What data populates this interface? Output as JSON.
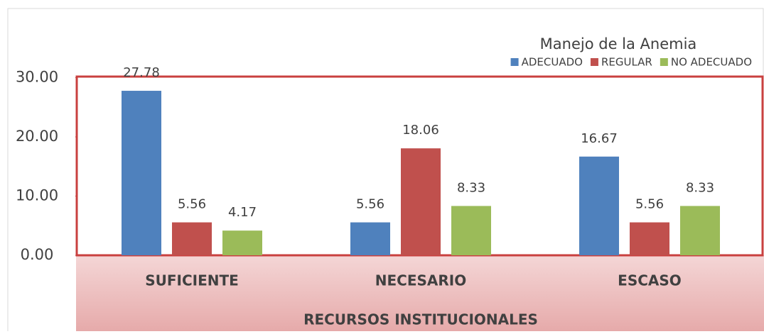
{
  "chart_data": {
    "type": "bar",
    "legend_title": "Manejo de la Anemia",
    "x_label": "RECURSOS INSTITUCIONALES",
    "categories": [
      "SUFICIENTE",
      "NECESARIO",
      "ESCASO"
    ],
    "series": [
      {
        "name": "ADECUADO",
        "color": "#4f81bd",
        "values": [
          27.78,
          5.56,
          16.67
        ]
      },
      {
        "name": "REGULAR",
        "color": "#c0504d",
        "values": [
          5.56,
          18.06,
          5.56
        ]
      },
      {
        "name": "NO ADECUADO",
        "color": "#9bbb59",
        "values": [
          4.17,
          8.33,
          8.33
        ]
      }
    ],
    "ylim": [
      0,
      30
    ],
    "yticks": [
      {
        "value": 0,
        "label": "0.00"
      },
      {
        "value": 10,
        "label": "10.00"
      },
      {
        "value": 20,
        "label": "20.00"
      },
      {
        "value": 30,
        "label": "30.00"
      }
    ],
    "legend": "top-right"
  }
}
